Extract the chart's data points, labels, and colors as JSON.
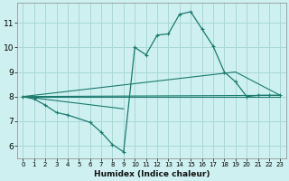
{
  "background_color": "#cef0f0",
  "grid_color": "#a8d8d8",
  "line_color": "#1a7a6e",
  "xlabel": "Humidex (Indice chaleur)",
  "xlim": [
    -0.5,
    23.5
  ],
  "ylim": [
    5.5,
    11.8
  ],
  "yticks": [
    6,
    7,
    8,
    9,
    10,
    11
  ],
  "xticks": [
    0,
    1,
    2,
    3,
    4,
    5,
    6,
    7,
    8,
    9,
    10,
    11,
    12,
    13,
    14,
    15,
    16,
    17,
    18,
    19,
    20,
    21,
    22,
    23
  ],
  "main_curve": {
    "x": [
      0,
      1,
      2,
      3,
      4,
      6,
      7,
      8,
      9,
      10,
      11,
      12,
      13,
      14,
      15,
      16,
      17,
      18,
      19,
      20,
      21,
      22,
      23
    ],
    "y": [
      8.0,
      7.9,
      7.65,
      7.35,
      7.25,
      6.95,
      6.55,
      6.05,
      5.75,
      10.0,
      9.7,
      10.5,
      10.55,
      11.35,
      11.45,
      10.75,
      10.05,
      9.0,
      8.6,
      8.0,
      8.05,
      8.05,
      8.05
    ]
  },
  "straight_lines": [
    {
      "x": [
        0,
        23
      ],
      "y": [
        8.0,
        8.05
      ]
    },
    {
      "x": [
        0,
        23
      ],
      "y": [
        8.0,
        8.0
      ]
    },
    {
      "x": [
        0,
        19,
        23
      ],
      "y": [
        8.0,
        9.0,
        8.05
      ]
    },
    {
      "x": [
        0,
        9
      ],
      "y": [
        8.0,
        7.5
      ]
    }
  ]
}
